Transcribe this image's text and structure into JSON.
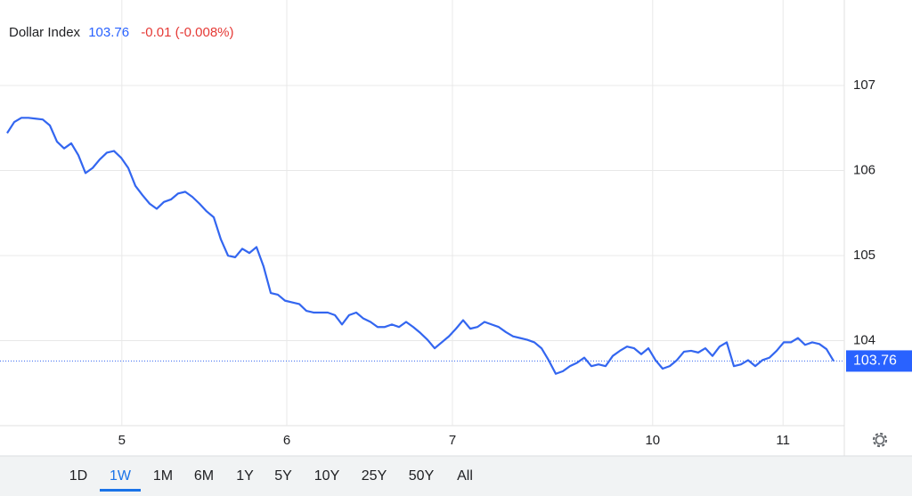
{
  "chart_data": {
    "type": "line",
    "title": "Dollar Index",
    "last_price": 103.76,
    "change": "-0.01 (-0.008%)",
    "x": [
      0,
      1,
      2,
      3,
      4,
      5,
      6,
      7,
      8,
      9,
      10,
      11,
      12,
      13,
      14,
      15,
      16,
      17,
      18,
      19,
      20,
      21,
      22,
      23,
      24,
      25,
      26,
      27,
      28,
      29,
      30,
      31,
      32,
      33,
      34,
      35,
      36,
      37,
      38,
      39,
      40,
      41,
      42,
      43,
      44,
      45,
      46,
      47,
      48,
      49,
      50,
      51,
      52,
      53,
      54,
      55,
      56,
      57,
      58,
      59,
      60,
      61,
      62,
      63,
      64,
      65,
      66,
      67,
      68,
      69,
      70,
      71,
      72,
      73,
      74,
      75,
      76,
      77,
      78,
      79,
      80,
      81,
      82,
      83,
      84,
      85,
      86,
      87,
      88,
      89,
      90,
      91,
      92,
      93,
      94,
      95,
      96,
      97,
      98,
      99,
      100,
      101,
      102,
      103,
      104,
      105,
      106,
      107,
      108,
      109,
      110,
      111,
      112,
      113,
      114,
      115,
      116
    ],
    "series": [
      {
        "name": "Dollar Index",
        "color": "#3366f0",
        "values": [
          106.44,
          106.57,
          106.62,
          106.62,
          106.61,
          106.6,
          106.53,
          106.34,
          106.26,
          106.32,
          106.18,
          105.97,
          106.03,
          106.13,
          106.21,
          106.23,
          106.15,
          106.03,
          105.82,
          105.71,
          105.61,
          105.55,
          105.63,
          105.66,
          105.73,
          105.75,
          105.69,
          105.61,
          105.52,
          105.45,
          105.19,
          105.0,
          104.98,
          105.08,
          105.03,
          105.1,
          104.87,
          104.56,
          104.54,
          104.47,
          104.45,
          104.43,
          104.35,
          104.33,
          104.33,
          104.33,
          104.3,
          104.19,
          104.3,
          104.33,
          104.26,
          104.22,
          104.16,
          104.16,
          104.19,
          104.16,
          104.22,
          104.16,
          104.09,
          104.01,
          103.91,
          103.98,
          104.05,
          104.14,
          104.24,
          104.14,
          104.16,
          104.22,
          104.19,
          104.16,
          104.1,
          104.05,
          104.03,
          104.01,
          103.98,
          103.91,
          103.77,
          103.61,
          103.64,
          103.7,
          103.74,
          103.8,
          103.7,
          103.72,
          103.7,
          103.82,
          103.88,
          103.93,
          103.91,
          103.84,
          103.91,
          103.77,
          103.67,
          103.7,
          103.77,
          103.87,
          103.88,
          103.86,
          103.91,
          103.82,
          103.93,
          103.98,
          103.7,
          103.72,
          103.77,
          103.7,
          103.77,
          103.8,
          103.88,
          103.98,
          103.98,
          104.03,
          103.95,
          103.98,
          103.96,
          103.9,
          103.76
        ]
      }
    ],
    "xlim": [
      -1,
      117.5
    ],
    "xticks": [
      {
        "value": 16.1,
        "label": "5"
      },
      {
        "value": 39.25,
        "label": "6"
      },
      {
        "value": 62.5,
        "label": "7"
      },
      {
        "value": 90.6,
        "label": "10"
      },
      {
        "value": 108.9,
        "label": "11"
      }
    ],
    "ylim": [
      103,
      108
    ],
    "yticks": [
      104,
      105,
      106,
      107
    ],
    "grid": true
  },
  "range_selector": {
    "options": [
      "1D",
      "1W",
      "1M",
      "6M",
      "1Y",
      "5Y",
      "10Y",
      "25Y",
      "50Y",
      "All"
    ],
    "active_index": 1
  }
}
